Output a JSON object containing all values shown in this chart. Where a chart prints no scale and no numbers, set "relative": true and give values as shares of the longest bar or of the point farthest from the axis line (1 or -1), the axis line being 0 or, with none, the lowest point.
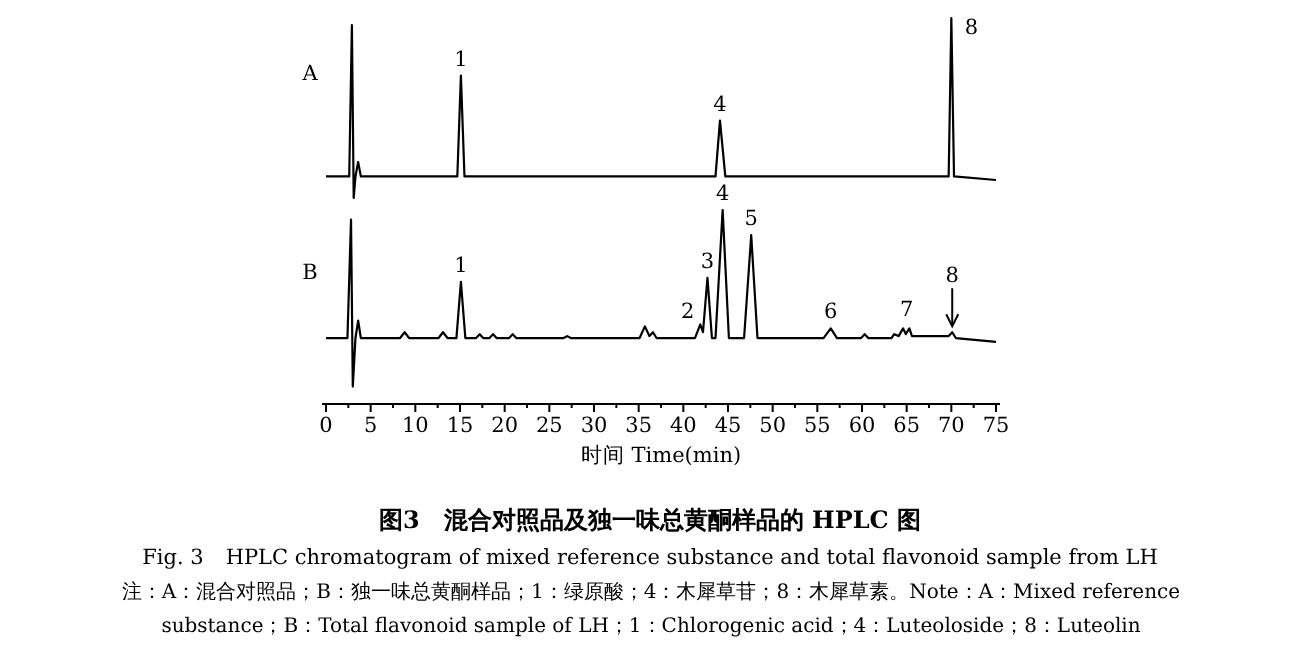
{
  "chart_data": [
    {
      "type": "line",
      "relative": true,
      "tick_labels": false,
      "xlim": [
        0,
        75
      ],
      "series": [
        {
          "color": "#000000",
          "x": [
            0,
            2.6,
            2.9,
            3.1,
            3.3,
            3.6,
            3.9,
            14.7,
            15.1,
            15.5,
            43.6,
            44.1,
            44.7,
            69.7,
            70.0,
            70.3,
            75
          ],
          "values": [
            0.12,
            0.12,
            0.96,
            0.0,
            0.12,
            0.2,
            0.12,
            0.12,
            0.68,
            0.12,
            0.12,
            0.43,
            0.12,
            0.12,
            1.0,
            0.12,
            0.1
          ]
        }
      ],
      "annotations": [
        "A",
        {
          "text": "1",
          "x": 15.1,
          "y": 0.68
        },
        {
          "text": "4",
          "x": 44.1,
          "y": 0.43
        },
        {
          "text": "8",
          "x": 70.0,
          "y": 1.0
        }
      ]
    },
    {
      "type": "line",
      "relative": true,
      "xlim": [
        0,
        75
      ],
      "title": "图3　混合对照品及独一味总黄酮样品的 HPLC 图",
      "subtitle": "Fig. 3　HPLC chromatogram of mixed reference substance and total flavonoid sample from LH",
      "xlabel": "时间 Time(min)",
      "xticks": [
        0,
        {
          "value": 2.5,
          "label": null
        },
        5,
        {
          "value": 7.5,
          "label": null
        },
        10,
        {
          "value": 12.5,
          "label": null
        },
        15,
        {
          "value": 17.5,
          "label": null
        },
        20,
        {
          "value": 22.5,
          "label": null
        },
        25,
        {
          "value": 27.5,
          "label": null
        },
        30,
        {
          "value": 32.5,
          "label": null
        },
        35,
        {
          "value": 37.5,
          "label": null
        },
        40,
        {
          "value": 42.5,
          "label": null
        },
        45,
        {
          "value": 47.5,
          "label": null
        },
        50,
        {
          "value": 52.5,
          "label": null
        },
        55,
        {
          "value": 57.5,
          "label": null
        },
        60,
        {
          "value": 62.5,
          "label": null
        },
        65,
        {
          "value": 67.5,
          "label": null
        },
        70,
        {
          "value": 72.5,
          "label": null
        },
        75
      ],
      "series": [
        {
          "color": "#000000",
          "x": [
            0,
            2.4,
            2.8,
            3.0,
            3.3,
            3.6,
            3.9,
            8.3,
            8.8,
            9.3,
            12.6,
            13.1,
            13.6,
            14.6,
            15.1,
            15.6,
            16.8,
            17.2,
            17.6,
            18.3,
            18.7,
            19.1,
            20.5,
            20.9,
            21.3,
            26.6,
            27.0,
            27.4,
            35.1,
            35.7,
            36.2,
            36.6,
            37.0,
            41.3,
            41.9,
            42.2,
            42.7,
            43.2,
            43.6,
            44.4,
            45.1,
            46.8,
            47.6,
            48.3,
            55.7,
            56.5,
            57.2,
            59.9,
            60.3,
            60.7,
            63.3,
            63.6,
            64.1,
            64.6,
            64.9,
            65.3,
            65.6,
            67,
            69.7,
            70.1,
            70.5,
            75
          ],
          "values": [
            0.34,
            0.34,
            0.95,
            0.09,
            0.34,
            0.43,
            0.34,
            0.34,
            0.37,
            0.34,
            0.34,
            0.37,
            0.34,
            0.34,
            0.63,
            0.34,
            0.34,
            0.36,
            0.34,
            0.34,
            0.36,
            0.34,
            0.34,
            0.36,
            0.34,
            0.34,
            0.35,
            0.34,
            0.34,
            0.4,
            0.35,
            0.37,
            0.34,
            0.34,
            0.41,
            0.37,
            0.65,
            0.34,
            0.34,
            1.0,
            0.34,
            0.34,
            0.87,
            0.34,
            0.34,
            0.39,
            0.34,
            0.34,
            0.36,
            0.34,
            0.34,
            0.36,
            0.35,
            0.39,
            0.36,
            0.39,
            0.35,
            0.35,
            0.35,
            0.37,
            0.34,
            0.32
          ]
        }
      ],
      "annotations": [
        "B",
        {
          "text": "1",
          "x": 15.1,
          "y": 0.63
        },
        {
          "text": "2",
          "x": 41.9,
          "y": 0.41
        },
        {
          "text": "3",
          "x": 42.7,
          "y": 0.65
        },
        {
          "text": "4",
          "x": 44.4,
          "y": 1.0
        },
        {
          "text": "5",
          "x": 47.6,
          "y": 0.87
        },
        {
          "text": "6",
          "x": 56.5,
          "y": 0.39
        },
        {
          "text": "7",
          "x": 65.0,
          "y": 0.4
        },
        {
          "text": "8",
          "x": 70.1,
          "y": 0.37
        },
        "注：A：混合对照品；B：独一味总黄酮样品；1：绿原酸；4：木犀草苷；8：木犀草素。Note：A：Mixed reference substance；B：Total flavonoid sample of LH；1：Chlorogenic acid；4：Luteoloside；8：Luteolin"
      ]
    }
  ]
}
